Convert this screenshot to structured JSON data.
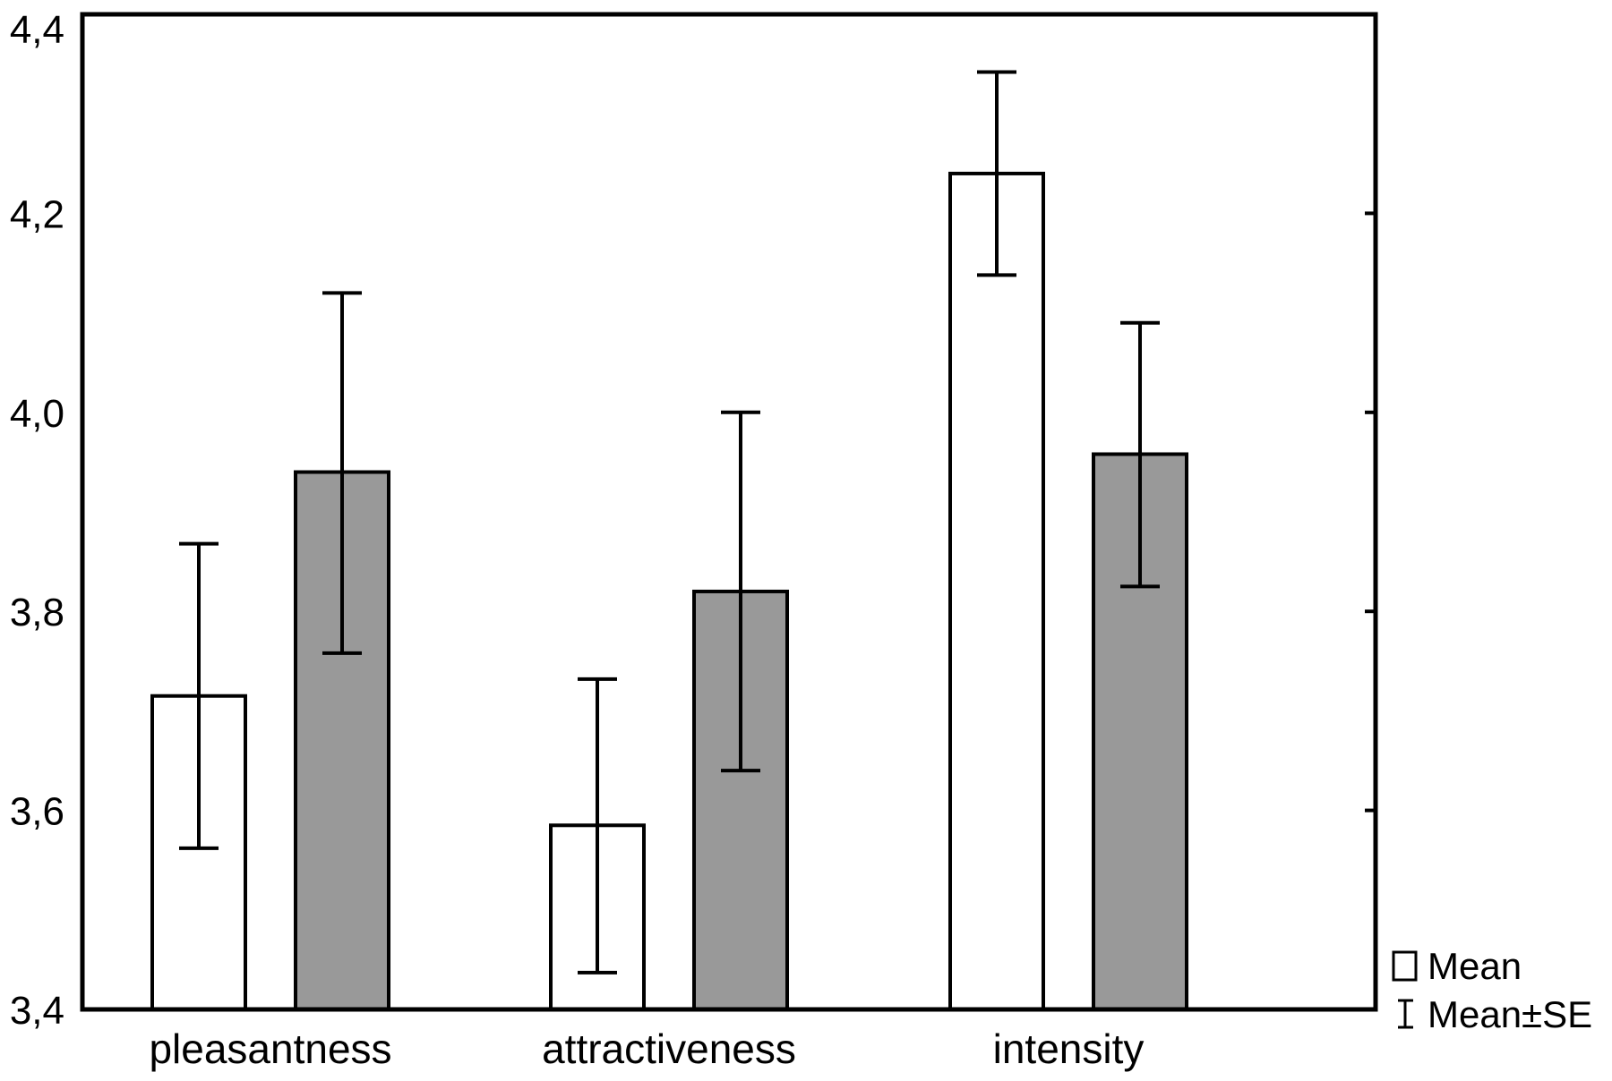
{
  "chart_data": {
    "type": "bar",
    "categories": [
      "pleasantness",
      "attractiveness",
      "intensity"
    ],
    "series": [
      {
        "fill": "#ffffff",
        "values": [
          3.715,
          3.585,
          4.24
        ],
        "se_low": [
          3.562,
          3.437,
          4.138
        ],
        "se_high": [
          3.868,
          3.732,
          4.342
        ]
      },
      {
        "fill": "#999999",
        "values": [
          3.94,
          3.82,
          3.958
        ],
        "se_low": [
          3.758,
          3.64,
          3.825
        ],
        "se_high": [
          4.12,
          4.0,
          4.09
        ]
      }
    ],
    "ylim": [
      3.4,
      4.4
    ],
    "yticks": [
      "3,4",
      "3,6",
      "3,8",
      "4,0",
      "4,2",
      "4,4"
    ],
    "ytick_values": [
      3.4,
      3.6,
      3.8,
      4.0,
      4.2,
      4.4
    ],
    "xlabel": "",
    "ylabel": "",
    "legend": {
      "position": "bottom-right, outside plot",
      "entries": [
        {
          "symbol": "box",
          "label": "Mean"
        },
        {
          "symbol": "error-bar",
          "label": "Mean±SE"
        }
      ]
    },
    "grid": false
  }
}
